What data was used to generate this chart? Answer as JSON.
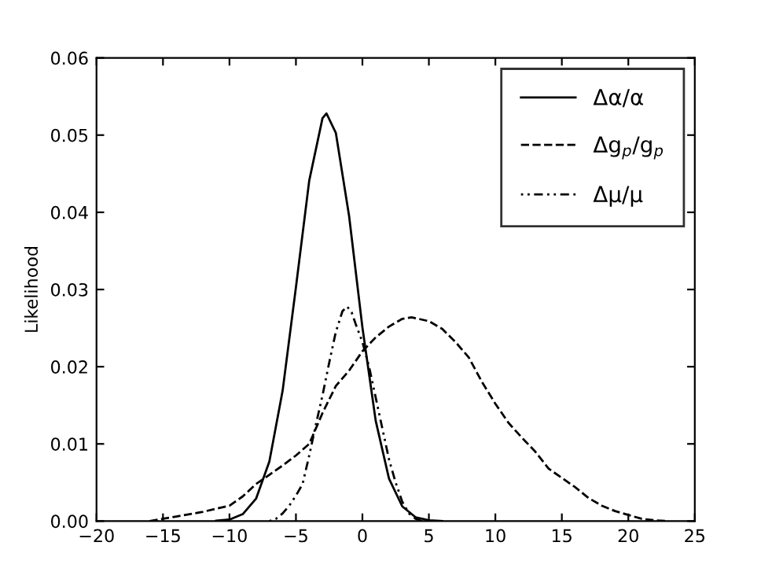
{
  "chart_data": {
    "type": "line",
    "ylabel": "Likelihood",
    "legend": "top right",
    "grid": false,
    "marker": "none",
    "xlim": [
      -20,
      25
    ],
    "ylim": [
      0,
      0.06
    ],
    "xticks": [
      {
        "value": -20,
        "label": "−20"
      },
      {
        "value": -15,
        "label": "−15"
      },
      {
        "value": -10,
        "label": "−10"
      },
      {
        "value": -5,
        "label": "−5"
      },
      0,
      5,
      10,
      15,
      20,
      25
    ],
    "yticks": [
      {
        "value": 0,
        "label": "0.00"
      },
      0.01,
      0.02,
      0.03,
      0.04,
      0.05,
      0.06
    ],
    "series": [
      {
        "name": "Δα/α",
        "color": "#000000",
        "line_style": "solid",
        "x": [
          -11,
          -10,
          -9,
          -8,
          -7,
          -6,
          -5,
          -4,
          -3,
          -2.7,
          -2,
          -1,
          0,
          1,
          2,
          3,
          4,
          5,
          6
        ],
        "values": [
          4e-05,
          0.0002,
          0.0009,
          0.0029,
          0.0077,
          0.0169,
          0.0303,
          0.0441,
          0.0522,
          0.0528,
          0.0503,
          0.0395,
          0.0251,
          0.013,
          0.0055,
          0.0019,
          0.0005,
          0.0001,
          0
        ]
      },
      {
        "name": "Δg$_{p}$/g$_{p}$",
        "color": "#000000",
        "line_style": "dashed",
        "x": [
          -16,
          -15,
          -14,
          -12,
          -10,
          -9,
          -8,
          -7,
          -6,
          -5,
          -4,
          -3,
          -2,
          -1,
          0,
          1,
          2,
          3,
          3.7,
          5,
          6,
          7,
          8,
          9,
          10,
          11,
          12,
          13,
          14,
          15,
          16,
          17,
          18,
          19,
          20,
          21,
          22,
          23
        ],
        "values": [
          0,
          0.0003,
          0.0006,
          0.0012,
          0.002,
          0.0032,
          0.0048,
          0.006,
          0.0072,
          0.0085,
          0.01,
          0.014,
          0.0175,
          0.0195,
          0.022,
          0.0238,
          0.0252,
          0.0262,
          0.0264,
          0.0259,
          0.0249,
          0.0232,
          0.0212,
          0.018,
          0.0152,
          0.0127,
          0.0108,
          0.009,
          0.0068,
          0.0056,
          0.0044,
          0.003,
          0.002,
          0.0013,
          0.0008,
          0.0003,
          0.0001,
          0
        ]
      },
      {
        "name": "Δμ/μ",
        "color": "#000000",
        "line_style": "dotted",
        "x": [
          -7,
          -6.5,
          -6,
          -5.5,
          -5,
          -4.5,
          -4,
          -3.5,
          -3,
          -2.5,
          -2,
          -1.5,
          -1.15,
          -0.8,
          -0.5,
          0,
          0.5,
          1,
          1.5,
          2,
          2.5,
          3,
          3.5,
          4,
          4.5
        ],
        "values": [
          0,
          0.0003,
          0.001,
          0.002,
          0.0033,
          0.0048,
          0.0085,
          0.0125,
          0.0163,
          0.0205,
          0.0245,
          0.0272,
          0.0278,
          0.027,
          0.0255,
          0.0232,
          0.02,
          0.016,
          0.012,
          0.008,
          0.005,
          0.0025,
          0.001,
          0.0003,
          0
        ]
      }
    ]
  }
}
